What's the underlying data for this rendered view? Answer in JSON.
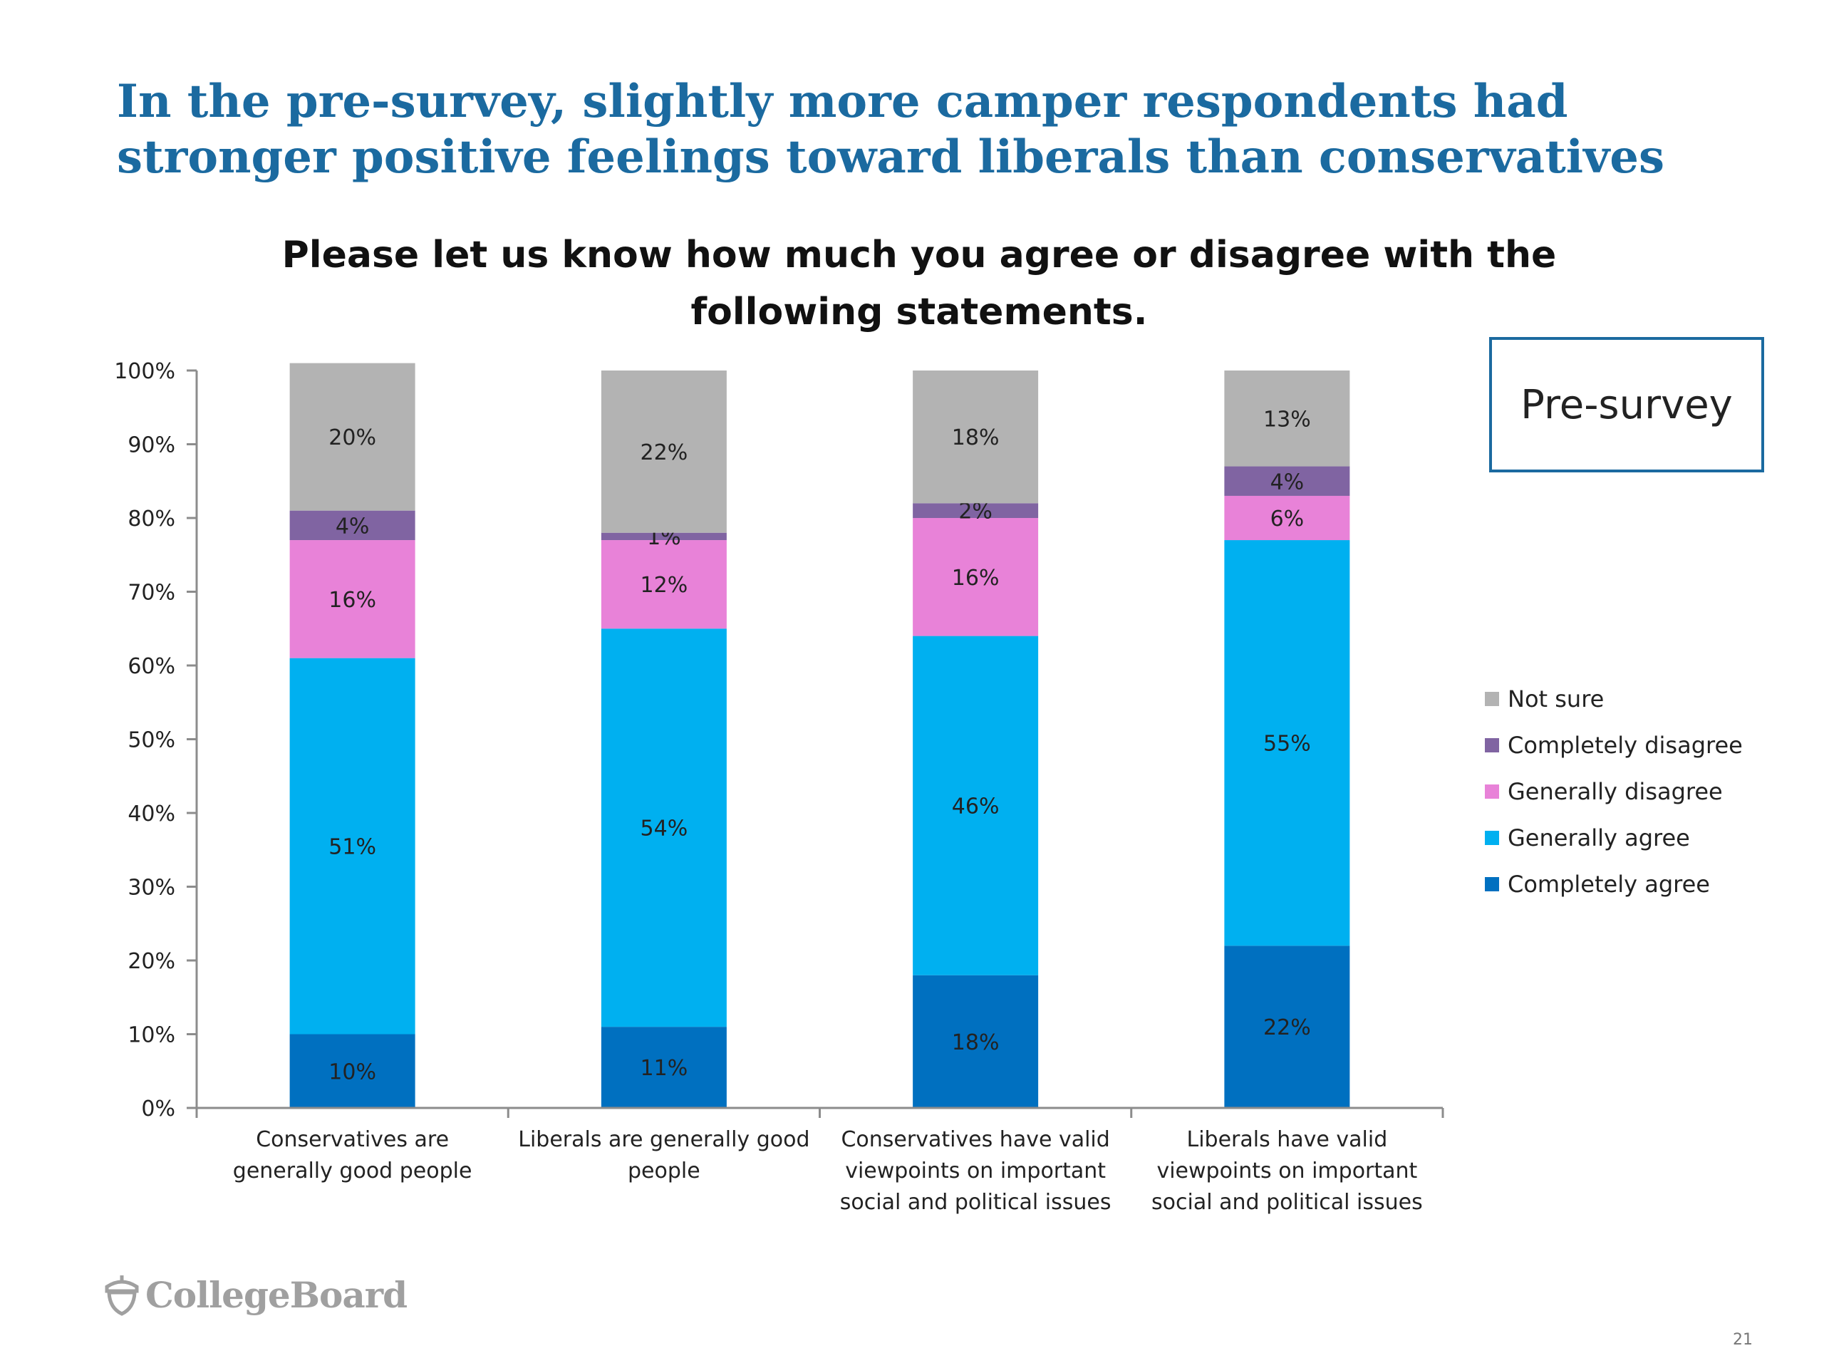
{
  "slide": {
    "title": "In the pre-survey, slightly more camper respondents had stronger positive feelings toward liberals than conservatives",
    "survey_label": "Pre-survey",
    "logo_text": "CollegeBoard",
    "page_number": "21"
  },
  "chart_data": {
    "type": "bar",
    "stacked": true,
    "title": "Please let us know how much you agree or disagree with the following statements.",
    "categories": [
      "Conservatives are generally good people",
      "Liberals are generally good people",
      "Conservatives have valid viewpoints on important social and political issues",
      "Liberals have valid viewpoints on important social and political issues"
    ],
    "series": [
      {
        "name": "Completely agree",
        "color": "#0070c0",
        "values": [
          10,
          11,
          18,
          22
        ],
        "labels": [
          "10%",
          "11%",
          "18%",
          "22%"
        ]
      },
      {
        "name": "Generally agree",
        "color": "#00b0f0",
        "values": [
          51,
          54,
          46,
          55
        ],
        "labels": [
          "51%",
          "54%",
          "46%",
          "55%"
        ]
      },
      {
        "name": "Generally disagree",
        "color": "#e882d8",
        "values": [
          16,
          12,
          16,
          6
        ],
        "labels": [
          "16%",
          "12%",
          "16%",
          "6%"
        ]
      },
      {
        "name": "Completely disagree",
        "color": "#8064a2",
        "values": [
          4,
          1,
          2,
          4
        ],
        "labels": [
          "4%",
          "1%",
          "2%",
          "4%"
        ]
      },
      {
        "name": "Not sure",
        "color": "#b3b3b3",
        "values": [
          20,
          22,
          18,
          13
        ],
        "labels": [
          "20%",
          "22%",
          "18%",
          "13%"
        ]
      }
    ],
    "ylim": [
      0,
      100
    ],
    "yticks": [
      "0%",
      "10%",
      "20%",
      "30%",
      "40%",
      "50%",
      "60%",
      "70%",
      "80%",
      "90%",
      "100%"
    ],
    "legend": {
      "position": "right",
      "order": [
        "Not sure",
        "Completely disagree",
        "Generally disagree",
        "Generally agree",
        "Completely agree"
      ]
    },
    "grid": false
  }
}
